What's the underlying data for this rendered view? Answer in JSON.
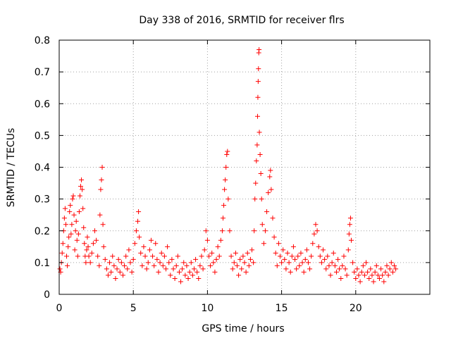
{
  "chart_data": {
    "type": "scatter",
    "title": "Day 338 of 2016, SRMTID for receiver flrs",
    "xlabel": "GPS time / hours",
    "ylabel": "SRMTID / TECUs",
    "xlim": [
      0,
      25
    ],
    "ylim": [
      0,
      0.8
    ],
    "x_ticks": [
      0,
      5,
      10,
      15,
      20
    ],
    "y_ticks": [
      0,
      0.1,
      0.2,
      0.3,
      0.4,
      0.5,
      0.6,
      0.7,
      0.8
    ],
    "x_tick_labels": [
      "0",
      "5",
      "10",
      "15",
      "20"
    ],
    "y_tick_labels": [
      "0",
      "0.1",
      "0.2",
      "0.3",
      "0.4",
      "0.5",
      "0.6",
      "0.7",
      "0.8"
    ],
    "grid": true,
    "marker": "+",
    "color": "#ff0000",
    "series": [
      {
        "name": "SRMTID",
        "points": [
          [
            0.05,
            0.08
          ],
          [
            0.1,
            0.07
          ],
          [
            0.15,
            0.1
          ],
          [
            0.2,
            0.13
          ],
          [
            0.25,
            0.16
          ],
          [
            0.3,
            0.2
          ],
          [
            0.35,
            0.24
          ],
          [
            0.4,
            0.27
          ],
          [
            0.45,
            0.22
          ],
          [
            0.5,
            0.12
          ],
          [
            0.55,
            0.09
          ],
          [
            0.6,
            0.15
          ],
          [
            0.65,
            0.18
          ],
          [
            0.7,
            0.26
          ],
          [
            0.75,
            0.28
          ],
          [
            0.8,
            0.19
          ],
          [
            0.85,
            0.22
          ],
          [
            0.9,
            0.3
          ],
          [
            0.95,
            0.31
          ],
          [
            1.0,
            0.25
          ],
          [
            1.05,
            0.14
          ],
          [
            1.1,
            0.2
          ],
          [
            1.15,
            0.23
          ],
          [
            1.2,
            0.17
          ],
          [
            1.25,
            0.12
          ],
          [
            1.3,
            0.19
          ],
          [
            1.35,
            0.26
          ],
          [
            1.4,
            0.31
          ],
          [
            1.45,
            0.34
          ],
          [
            1.5,
            0.36
          ],
          [
            1.55,
            0.33
          ],
          [
            1.6,
            0.27
          ],
          [
            1.65,
            0.21
          ],
          [
            1.7,
            0.16
          ],
          [
            1.75,
            0.12
          ],
          [
            1.8,
            0.1
          ],
          [
            1.85,
            0.14
          ],
          [
            1.9,
            0.18
          ],
          [
            1.95,
            0.15
          ],
          [
            2.0,
            0.12
          ],
          [
            2.1,
            0.1
          ],
          [
            2.2,
            0.13
          ],
          [
            2.3,
            0.16
          ],
          [
            2.4,
            0.2
          ],
          [
            2.5,
            0.17
          ],
          [
            2.6,
            0.12
          ],
          [
            2.7,
            0.09
          ],
          [
            2.75,
            0.25
          ],
          [
            2.8,
            0.33
          ],
          [
            2.85,
            0.36
          ],
          [
            2.9,
            0.4
          ],
          [
            2.95,
            0.22
          ],
          [
            3.0,
            0.15
          ],
          [
            3.1,
            0.11
          ],
          [
            3.2,
            0.08
          ],
          [
            3.3,
            0.06
          ],
          [
            3.4,
            0.1
          ],
          [
            3.5,
            0.07
          ],
          [
            3.6,
            0.12
          ],
          [
            3.7,
            0.09
          ],
          [
            3.8,
            0.05
          ],
          [
            3.9,
            0.08
          ],
          [
            4.0,
            0.11
          ],
          [
            4.1,
            0.07
          ],
          [
            4.2,
            0.1
          ],
          [
            4.3,
            0.06
          ],
          [
            4.4,
            0.09
          ],
          [
            4.5,
            0.12
          ],
          [
            4.6,
            0.08
          ],
          [
            4.7,
            0.14
          ],
          [
            4.8,
            0.1
          ],
          [
            4.9,
            0.07
          ],
          [
            5.0,
            0.11
          ],
          [
            5.1,
            0.16
          ],
          [
            5.2,
            0.2
          ],
          [
            5.3,
            0.23
          ],
          [
            5.35,
            0.26
          ],
          [
            5.4,
            0.18
          ],
          [
            5.5,
            0.13
          ],
          [
            5.6,
            0.09
          ],
          [
            5.7,
            0.15
          ],
          [
            5.8,
            0.12
          ],
          [
            5.9,
            0.08
          ],
          [
            6.0,
            0.1
          ],
          [
            6.1,
            0.14
          ],
          [
            6.2,
            0.17
          ],
          [
            6.3,
            0.12
          ],
          [
            6.4,
            0.09
          ],
          [
            6.5,
            0.16
          ],
          [
            6.6,
            0.11
          ],
          [
            6.7,
            0.07
          ],
          [
            6.8,
            0.1
          ],
          [
            6.9,
            0.13
          ],
          [
            7.0,
            0.09
          ],
          [
            7.1,
            0.12
          ],
          [
            7.2,
            0.08
          ],
          [
            7.3,
            0.15
          ],
          [
            7.4,
            0.1
          ],
          [
            7.5,
            0.06
          ],
          [
            7.6,
            0.11
          ],
          [
            7.7,
            0.08
          ],
          [
            7.8,
            0.05
          ],
          [
            7.9,
            0.09
          ],
          [
            8.0,
            0.12
          ],
          [
            8.1,
            0.07
          ],
          [
            8.2,
            0.04
          ],
          [
            8.3,
            0.08
          ],
          [
            8.4,
            0.1
          ],
          [
            8.5,
            0.06
          ],
          [
            8.6,
            0.09
          ],
          [
            8.7,
            0.05
          ],
          [
            8.8,
            0.07
          ],
          [
            8.9,
            0.1
          ],
          [
            9.0,
            0.06
          ],
          [
            9.1,
            0.08
          ],
          [
            9.2,
            0.11
          ],
          [
            9.3,
            0.07
          ],
          [
            9.4,
            0.05
          ],
          [
            9.5,
            0.09
          ],
          [
            9.6,
            0.12
          ],
          [
            9.7,
            0.08
          ],
          [
            9.8,
            0.14
          ],
          [
            9.9,
            0.2
          ],
          [
            10.0,
            0.17
          ],
          [
            10.1,
            0.12
          ],
          [
            10.2,
            0.09
          ],
          [
            10.3,
            0.13
          ],
          [
            10.4,
            0.1
          ],
          [
            10.5,
            0.07
          ],
          [
            10.6,
            0.11
          ],
          [
            10.7,
            0.15
          ],
          [
            10.8,
            0.12
          ],
          [
            10.9,
            0.17
          ],
          [
            11.0,
            0.2
          ],
          [
            11.05,
            0.24
          ],
          [
            11.1,
            0.28
          ],
          [
            11.15,
            0.33
          ],
          [
            11.2,
            0.36
          ],
          [
            11.25,
            0.4
          ],
          [
            11.3,
            0.44
          ],
          [
            11.35,
            0.45
          ],
          [
            11.4,
            0.3
          ],
          [
            11.5,
            0.2
          ],
          [
            11.6,
            0.12
          ],
          [
            11.7,
            0.08
          ],
          [
            11.8,
            0.1
          ],
          [
            11.9,
            0.13
          ],
          [
            12.0,
            0.09
          ],
          [
            12.1,
            0.06
          ],
          [
            12.2,
            0.11
          ],
          [
            12.3,
            0.08
          ],
          [
            12.4,
            0.12
          ],
          [
            12.5,
            0.1
          ],
          [
            12.6,
            0.07
          ],
          [
            12.7,
            0.13
          ],
          [
            12.8,
            0.09
          ],
          [
            12.9,
            0.11
          ],
          [
            13.0,
            0.14
          ],
          [
            13.1,
            0.1
          ],
          [
            13.15,
            0.2
          ],
          [
            13.2,
            0.3
          ],
          [
            13.25,
            0.35
          ],
          [
            13.3,
            0.42
          ],
          [
            13.35,
            0.47
          ],
          [
            13.38,
            0.56
          ],
          [
            13.4,
            0.62
          ],
          [
            13.42,
            0.67
          ],
          [
            13.44,
            0.71
          ],
          [
            13.46,
            0.76
          ],
          [
            13.48,
            0.77
          ],
          [
            13.5,
            0.51
          ],
          [
            13.55,
            0.44
          ],
          [
            13.6,
            0.38
          ],
          [
            13.65,
            0.3
          ],
          [
            13.7,
            0.22
          ],
          [
            13.8,
            0.16
          ],
          [
            13.9,
            0.2
          ],
          [
            14.0,
            0.26
          ],
          [
            14.1,
            0.32
          ],
          [
            14.2,
            0.37
          ],
          [
            14.25,
            0.39
          ],
          [
            14.3,
            0.33
          ],
          [
            14.4,
            0.24
          ],
          [
            14.5,
            0.18
          ],
          [
            14.6,
            0.13
          ],
          [
            14.7,
            0.09
          ],
          [
            14.8,
            0.16
          ],
          [
            14.9,
            0.12
          ],
          [
            15.0,
            0.1
          ],
          [
            15.1,
            0.14
          ],
          [
            15.2,
            0.11
          ],
          [
            15.3,
            0.08
          ],
          [
            15.4,
            0.13
          ],
          [
            15.5,
            0.1
          ],
          [
            15.6,
            0.07
          ],
          [
            15.7,
            0.12
          ],
          [
            15.8,
            0.15
          ],
          [
            15.9,
            0.11
          ],
          [
            16.0,
            0.08
          ],
          [
            16.1,
            0.12
          ],
          [
            16.2,
            0.09
          ],
          [
            16.3,
            0.13
          ],
          [
            16.4,
            0.1
          ],
          [
            16.5,
            0.07
          ],
          [
            16.6,
            0.11
          ],
          [
            16.7,
            0.14
          ],
          [
            16.8,
            0.1
          ],
          [
            16.9,
            0.08
          ],
          [
            17.0,
            0.12
          ],
          [
            17.1,
            0.16
          ],
          [
            17.2,
            0.19
          ],
          [
            17.3,
            0.22
          ],
          [
            17.4,
            0.2
          ],
          [
            17.5,
            0.15
          ],
          [
            17.6,
            0.12
          ],
          [
            17.7,
            0.1
          ],
          [
            17.8,
            0.14
          ],
          [
            17.9,
            0.11
          ],
          [
            18.0,
            0.08
          ],
          [
            18.1,
            0.12
          ],
          [
            18.2,
            0.09
          ],
          [
            18.3,
            0.06
          ],
          [
            18.4,
            0.1
          ],
          [
            18.5,
            0.13
          ],
          [
            18.6,
            0.09
          ],
          [
            18.7,
            0.07
          ],
          [
            18.8,
            0.11
          ],
          [
            18.9,
            0.08
          ],
          [
            19.0,
            0.05
          ],
          [
            19.1,
            0.09
          ],
          [
            19.2,
            0.12
          ],
          [
            19.3,
            0.08
          ],
          [
            19.4,
            0.06
          ],
          [
            19.5,
            0.14
          ],
          [
            19.55,
            0.19
          ],
          [
            19.6,
            0.22
          ],
          [
            19.65,
            0.24
          ],
          [
            19.7,
            0.17
          ],
          [
            19.8,
            0.1
          ],
          [
            19.9,
            0.07
          ],
          [
            20.0,
            0.05
          ],
          [
            20.1,
            0.08
          ],
          [
            20.2,
            0.06
          ],
          [
            20.3,
            0.04
          ],
          [
            20.4,
            0.07
          ],
          [
            20.5,
            0.09
          ],
          [
            20.6,
            0.06
          ],
          [
            20.7,
            0.1
          ],
          [
            20.8,
            0.07
          ],
          [
            20.9,
            0.05
          ],
          [
            21.0,
            0.08
          ],
          [
            21.1,
            0.06
          ],
          [
            21.2,
            0.04
          ],
          [
            21.3,
            0.07
          ],
          [
            21.4,
            0.09
          ],
          [
            21.5,
            0.06
          ],
          [
            21.6,
            0.05
          ],
          [
            21.7,
            0.08
          ],
          [
            21.8,
            0.06
          ],
          [
            21.9,
            0.04
          ],
          [
            22.0,
            0.07
          ],
          [
            22.1,
            0.09
          ],
          [
            22.2,
            0.06
          ],
          [
            22.3,
            0.08
          ],
          [
            22.4,
            0.1
          ],
          [
            22.5,
            0.07
          ],
          [
            22.6,
            0.09
          ],
          [
            22.7,
            0.08
          ]
        ]
      }
    ]
  }
}
